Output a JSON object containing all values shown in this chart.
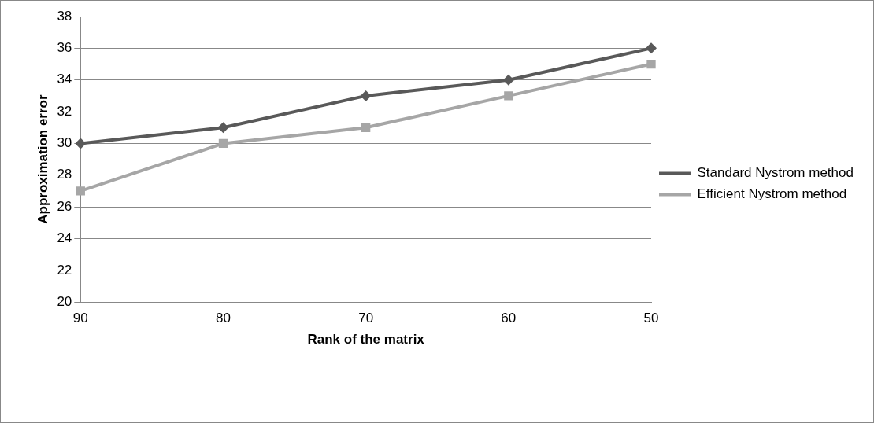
{
  "chart_data": {
    "type": "line",
    "xlabel": "Rank of the matrix",
    "ylabel": "Approximation error",
    "categories": [
      "90",
      "80",
      "70",
      "60",
      "50"
    ],
    "series": [
      {
        "name": "Standard Nystrom method",
        "color": "#595959",
        "marker": "diamond",
        "values": [
          30,
          31,
          33,
          34,
          36
        ]
      },
      {
        "name": "Efficient Nystrom method",
        "color": "#a6a6a6",
        "marker": "square",
        "values": [
          27,
          30,
          31,
          33,
          35
        ]
      }
    ],
    "ylim": [
      20,
      38
    ],
    "yticks": [
      20,
      22,
      24,
      26,
      28,
      30,
      32,
      34,
      36,
      38
    ],
    "grid": "y",
    "legend": "right",
    "line_style": "solid"
  }
}
